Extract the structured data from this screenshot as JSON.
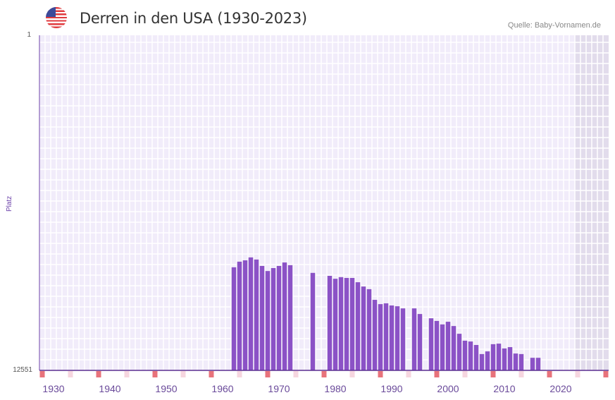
{
  "header": {
    "title": "Derren in den USA (1930-2023)",
    "source": "Quelle: Baby-Vornamen.de",
    "flag_icon": "us-flag-icon"
  },
  "chart_data": {
    "type": "bar",
    "title": "Derren in den USA (1930-2023)",
    "xlabel": "",
    "ylabel": "Platz",
    "ylim": [
      1,
      12551
    ],
    "y_inverted": true,
    "y_tick_labels": [
      "1",
      "12551"
    ],
    "xlim": [
      1927.5,
      2028.5
    ],
    "x_tick_labels": [
      "1930",
      "1940",
      "1950",
      "1960",
      "1970",
      "1980",
      "1990",
      "2000",
      "2010",
      "2020"
    ],
    "x_ticks": [
      1930,
      1940,
      1950,
      1960,
      1970,
      1980,
      1990,
      2000,
      2010,
      2020
    ],
    "grid": true,
    "shaded_region": [
      2022.5,
      2028.5
    ],
    "bar_color": "#8b52c6",
    "x": [
      1962,
      1963,
      1964,
      1965,
      1966,
      1967,
      1968,
      1969,
      1970,
      1971,
      1972,
      1976,
      1979,
      1980,
      1981,
      1982,
      1983,
      1984,
      1985,
      1986,
      1987,
      1988,
      1989,
      1990,
      1991,
      1992,
      1994,
      1995,
      1997,
      1998,
      1999,
      2000,
      2001,
      2002,
      2003,
      2004,
      2005,
      2006,
      2007,
      2008,
      2009,
      2010,
      2011,
      2012,
      2013,
      2015,
      2016
    ],
    "values": [
      8690,
      8480,
      8430,
      8320,
      8400,
      8640,
      8830,
      8720,
      8640,
      8510,
      8610,
      8900,
      9010,
      9120,
      9060,
      9090,
      9090,
      9250,
      9410,
      9510,
      9910,
      10070,
      10040,
      10120,
      10150,
      10230,
      10230,
      10440,
      10600,
      10700,
      10830,
      10730,
      10890,
      11180,
      11440,
      11470,
      11600,
      11940,
      11840,
      11570,
      11550,
      11730,
      11680,
      11920,
      11940,
      12080,
      12080
    ]
  }
}
